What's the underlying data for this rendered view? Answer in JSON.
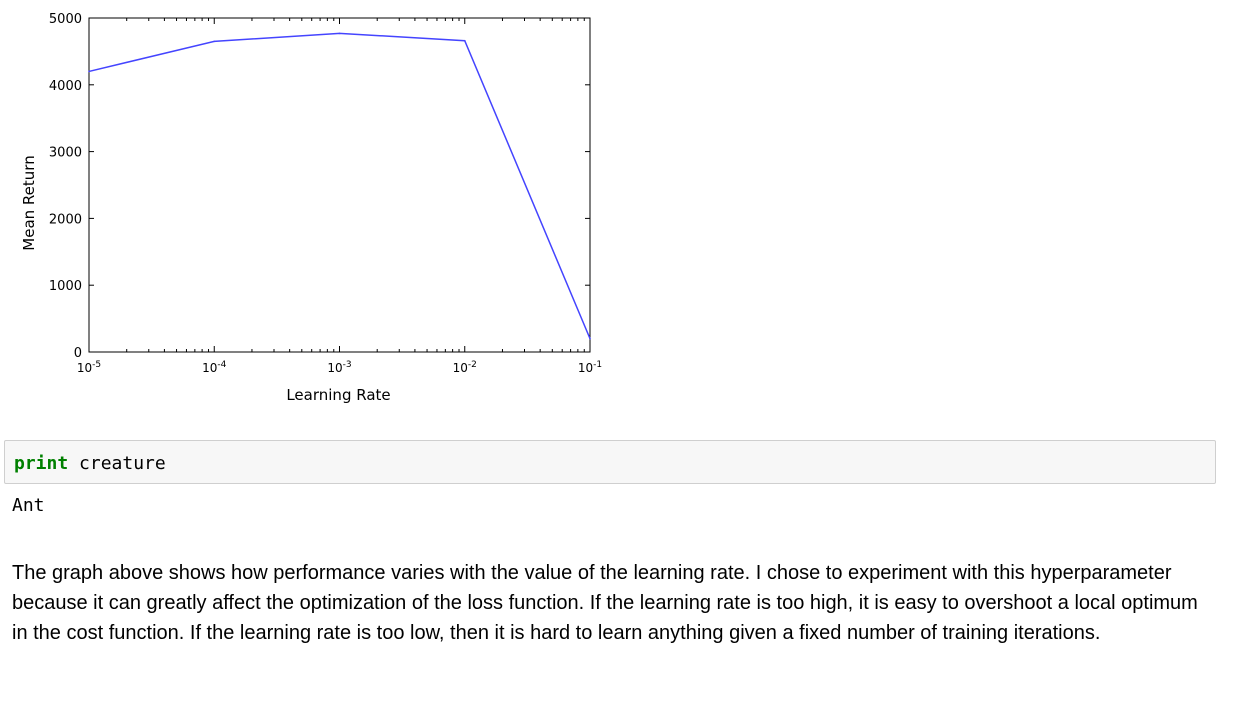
{
  "chart_data": {
    "type": "line",
    "xlabel": "Learning Rate",
    "ylabel": "Mean Return",
    "xscale": "log",
    "x": [
      1e-05,
      0.0001,
      0.001,
      0.01,
      0.1
    ],
    "series": [
      {
        "values": [
          4200,
          4650,
          4770,
          4660,
          200
        ],
        "color": "#4444ff"
      }
    ],
    "xlim": [
      1e-05,
      0.1
    ],
    "ylim": [
      0,
      5000
    ],
    "y_ticks": [
      "0",
      "1000",
      "2000",
      "3000",
      "4000",
      "5000"
    ],
    "x_ticks": [
      {
        "base": "10",
        "exp": "-5"
      },
      {
        "base": "10",
        "exp": "-4"
      },
      {
        "base": "10",
        "exp": "-3"
      },
      {
        "base": "10",
        "exp": "-2"
      },
      {
        "base": "10",
        "exp": "-1"
      }
    ],
    "grid": false
  },
  "code_cell": {
    "keyword": "print",
    "argument": "creature"
  },
  "output": {
    "text": "Ant"
  },
  "markdown": {
    "paragraph": "The graph above shows how performance varies with the value of the learning rate. I chose to experiment with this hyperparameter because it can greatly affect the optimization of the loss function. If the learning rate is too high, it is easy to overshoot a local optimum in the cost function. If the learning rate is too low, then it is hard to learn anything given a fixed number of training iterations."
  }
}
